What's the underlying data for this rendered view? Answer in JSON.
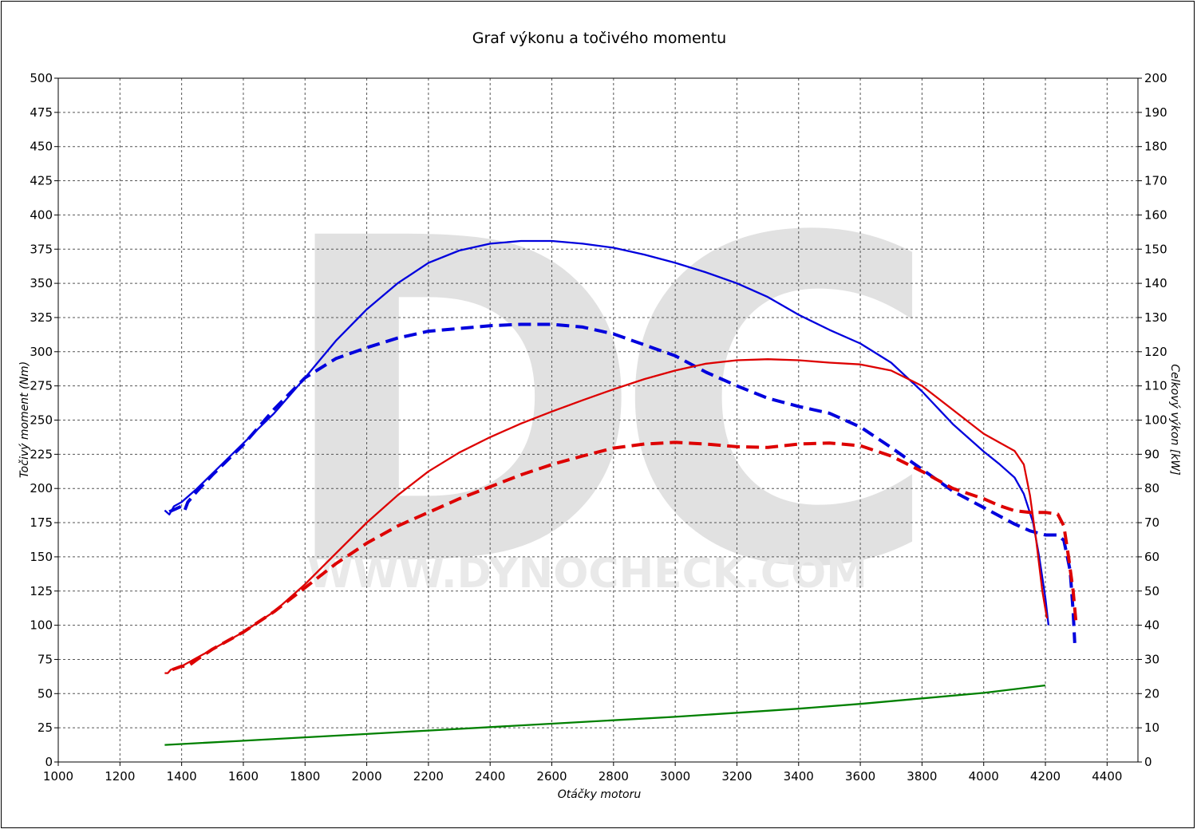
{
  "chart_data": {
    "type": "line",
    "title": "Graf výkonu a točivého momentu",
    "xlabel": "Otáčky motoru",
    "ylabel_left": "Točivý moment (Nm)",
    "ylabel_right": "Celkový výkon [kW]",
    "watermark": {
      "logo": "DC",
      "text": "WWW.DYNOCHECK.COM"
    },
    "xlim": [
      1000,
      4500
    ],
    "ylim_left": [
      0,
      500
    ],
    "ylim_right": [
      0,
      200
    ],
    "grid": true,
    "x_ticks": [
      1000,
      1200,
      1400,
      1600,
      1800,
      2000,
      2200,
      2400,
      2600,
      2800,
      3000,
      3200,
      3400,
      3600,
      3800,
      4000,
      4200,
      4400
    ],
    "y_left_ticks": [
      0,
      25,
      50,
      75,
      100,
      125,
      150,
      175,
      200,
      225,
      250,
      275,
      300,
      325,
      350,
      375,
      400,
      425,
      450,
      475,
      500
    ],
    "y_right_ticks": [
      0,
      10,
      20,
      30,
      40,
      50,
      60,
      70,
      80,
      90,
      100,
      110,
      120,
      130,
      140,
      150,
      160,
      170,
      180,
      190,
      200
    ],
    "series": [
      {
        "color": "#0000dd",
        "dash": false,
        "axis": "left",
        "points": [
          [
            1345,
            184
          ],
          [
            1360,
            181
          ],
          [
            1375,
            187
          ],
          [
            1400,
            190
          ],
          [
            1450,
            200
          ],
          [
            1500,
            211
          ],
          [
            1600,
            233
          ],
          [
            1700,
            255
          ],
          [
            1800,
            281
          ],
          [
            1900,
            308
          ],
          [
            2000,
            331
          ],
          [
            2100,
            350
          ],
          [
            2200,
            365
          ],
          [
            2300,
            374
          ],
          [
            2400,
            379
          ],
          [
            2500,
            381
          ],
          [
            2600,
            381
          ],
          [
            2700,
            379
          ],
          [
            2800,
            376
          ],
          [
            2900,
            371
          ],
          [
            3000,
            365
          ],
          [
            3100,
            358
          ],
          [
            3200,
            350
          ],
          [
            3300,
            340
          ],
          [
            3400,
            327
          ],
          [
            3500,
            316
          ],
          [
            3600,
            306
          ],
          [
            3700,
            292
          ],
          [
            3800,
            271
          ],
          [
            3900,
            247
          ],
          [
            4000,
            227
          ],
          [
            4050,
            218
          ],
          [
            4100,
            208
          ],
          [
            4130,
            196
          ],
          [
            4160,
            175
          ],
          [
            4180,
            150
          ],
          [
            4200,
            120
          ],
          [
            4210,
            100
          ]
        ]
      },
      {
        "color": "#0000dd",
        "dash": true,
        "axis": "left",
        "points": [
          [
            1360,
            183
          ],
          [
            1380,
            185
          ],
          [
            1400,
            187
          ],
          [
            1410,
            184
          ],
          [
            1420,
            190
          ],
          [
            1450,
            198
          ],
          [
            1500,
            210
          ],
          [
            1600,
            232
          ],
          [
            1700,
            258
          ],
          [
            1800,
            281
          ],
          [
            1900,
            295
          ],
          [
            2000,
            303
          ],
          [
            2100,
            310
          ],
          [
            2200,
            315
          ],
          [
            2300,
            317
          ],
          [
            2400,
            319
          ],
          [
            2500,
            320
          ],
          [
            2600,
            320
          ],
          [
            2700,
            318
          ],
          [
            2800,
            313
          ],
          [
            2900,
            305
          ],
          [
            3000,
            297
          ],
          [
            3100,
            285
          ],
          [
            3200,
            275
          ],
          [
            3300,
            266
          ],
          [
            3400,
            260
          ],
          [
            3500,
            255
          ],
          [
            3600,
            245
          ],
          [
            3700,
            230
          ],
          [
            3800,
            214
          ],
          [
            3900,
            198
          ],
          [
            4000,
            186
          ],
          [
            4100,
            174
          ],
          [
            4150,
            169
          ],
          [
            4200,
            166
          ],
          [
            4240,
            166
          ],
          [
            4260,
            162
          ],
          [
            4280,
            140
          ],
          [
            4290,
            110
          ],
          [
            4295,
            87
          ]
        ]
      },
      {
        "color": "#dd0000",
        "dash": false,
        "axis": "right",
        "points": [
          [
            1345,
            26
          ],
          [
            1355,
            26
          ],
          [
            1365,
            27
          ],
          [
            1400,
            28
          ],
          [
            1450,
            30.5
          ],
          [
            1500,
            33
          ],
          [
            1600,
            38
          ],
          [
            1700,
            44
          ],
          [
            1800,
            52
          ],
          [
            1900,
            61
          ],
          [
            2000,
            70
          ],
          [
            2100,
            78
          ],
          [
            2200,
            85
          ],
          [
            2300,
            90.5
          ],
          [
            2400,
            95
          ],
          [
            2500,
            99
          ],
          [
            2600,
            102.5
          ],
          [
            2700,
            105.8
          ],
          [
            2800,
            109
          ],
          [
            2900,
            112
          ],
          [
            3000,
            114.5
          ],
          [
            3100,
            116.5
          ],
          [
            3200,
            117.5
          ],
          [
            3300,
            117.8
          ],
          [
            3400,
            117.5
          ],
          [
            3500,
            116.8
          ],
          [
            3600,
            116.3
          ],
          [
            3700,
            114.5
          ],
          [
            3800,
            110
          ],
          [
            3900,
            103
          ],
          [
            4000,
            96
          ],
          [
            4050,
            93.5
          ],
          [
            4100,
            91
          ],
          [
            4130,
            87
          ],
          [
            4150,
            78
          ],
          [
            4170,
            65
          ],
          [
            4190,
            50
          ],
          [
            4205,
            42
          ]
        ]
      },
      {
        "color": "#dd0000",
        "dash": true,
        "axis": "right",
        "points": [
          [
            1370,
            27
          ],
          [
            1400,
            28
          ],
          [
            1420,
            28
          ],
          [
            1450,
            30
          ],
          [
            1500,
            33
          ],
          [
            1600,
            38
          ],
          [
            1700,
            44
          ],
          [
            1800,
            51
          ],
          [
            1900,
            58
          ],
          [
            2000,
            64
          ],
          [
            2100,
            69
          ],
          [
            2200,
            73
          ],
          [
            2300,
            77
          ],
          [
            2400,
            80.5
          ],
          [
            2500,
            84
          ],
          [
            2600,
            87
          ],
          [
            2700,
            89.5
          ],
          [
            2800,
            91.8
          ],
          [
            2900,
            93
          ],
          [
            3000,
            93.5
          ],
          [
            3100,
            93
          ],
          [
            3200,
            92.2
          ],
          [
            3300,
            92
          ],
          [
            3400,
            93
          ],
          [
            3500,
            93.3
          ],
          [
            3600,
            92.5
          ],
          [
            3700,
            89.5
          ],
          [
            3800,
            85
          ],
          [
            3900,
            80
          ],
          [
            4000,
            77
          ],
          [
            4050,
            75
          ],
          [
            4100,
            73.5
          ],
          [
            4150,
            73
          ],
          [
            4200,
            73
          ],
          [
            4240,
            72.5
          ],
          [
            4260,
            69
          ],
          [
            4275,
            60
          ],
          [
            4290,
            50
          ],
          [
            4300,
            40
          ]
        ]
      },
      {
        "color": "#008000",
        "dash": false,
        "axis": "left",
        "points": [
          [
            1345,
            12.5
          ],
          [
            1600,
            15.5
          ],
          [
            1800,
            18
          ],
          [
            2000,
            20.5
          ],
          [
            2200,
            23
          ],
          [
            2400,
            25.5
          ],
          [
            2600,
            28
          ],
          [
            2800,
            30.5
          ],
          [
            3000,
            33
          ],
          [
            3200,
            36
          ],
          [
            3400,
            39
          ],
          [
            3600,
            42.5
          ],
          [
            3800,
            46.5
          ],
          [
            4000,
            50.5
          ],
          [
            4200,
            56
          ]
        ]
      }
    ]
  }
}
